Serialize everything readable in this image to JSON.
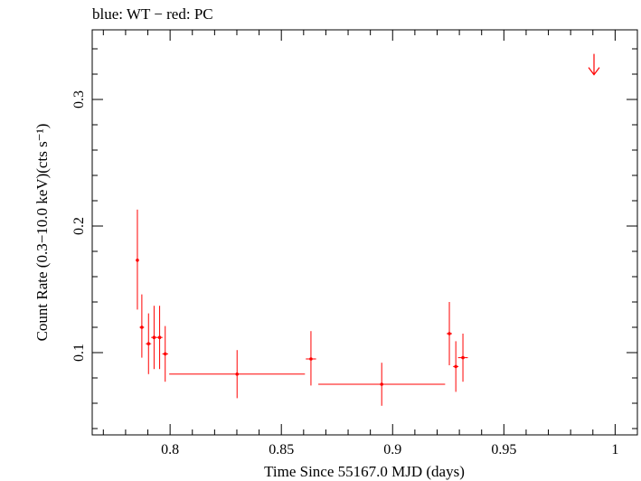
{
  "chart_data": {
    "type": "scatter",
    "title": "blue: WT − red: PC",
    "xlabel": "Time Since 55167.0 MJD (days)",
    "ylabel": "Count Rate (0.3−10.0 keV)(cts s⁻¹)",
    "xlim": [
      0.765,
      1.01
    ],
    "ylim": [
      0.035,
      0.355
    ],
    "x_ticks": [
      {
        "value": 0.8,
        "label": "0.8"
      },
      {
        "value": 0.85,
        "label": "0.85"
      },
      {
        "value": 0.9,
        "label": "0.9"
      },
      {
        "value": 0.95,
        "label": "0.95"
      },
      {
        "value": 1.0,
        "label": "1"
      }
    ],
    "y_ticks": [
      {
        "value": 0.1,
        "label": "0.1"
      },
      {
        "value": 0.2,
        "label": "0.2"
      },
      {
        "value": 0.3,
        "label": "0.3"
      }
    ],
    "series": [
      {
        "name": "PC",
        "color": "#ff0000",
        "points": [
          {
            "x": 0.7853,
            "y": 0.173,
            "xerr": 0.0,
            "ylo": 0.134,
            "yhi": 0.213
          },
          {
            "x": 0.7873,
            "y": 0.12,
            "xerr": 0.001,
            "ylo": 0.096,
            "yhi": 0.146
          },
          {
            "x": 0.7903,
            "y": 0.107,
            "xerr": 0.0012,
            "ylo": 0.083,
            "yhi": 0.131
          },
          {
            "x": 0.7928,
            "y": 0.112,
            "xerr": 0.0013,
            "ylo": 0.087,
            "yhi": 0.137
          },
          {
            "x": 0.7953,
            "y": 0.112,
            "xerr": 0.0013,
            "ylo": 0.087,
            "yhi": 0.137
          },
          {
            "x": 0.7978,
            "y": 0.099,
            "xerr": 0.0013,
            "ylo": 0.077,
            "yhi": 0.121
          },
          {
            "x": 0.8301,
            "y": 0.083,
            "xerr": 0.0305,
            "ylo": 0.064,
            "yhi": 0.102
          },
          {
            "x": 0.8633,
            "y": 0.095,
            "xerr": 0.0023,
            "ylo": 0.074,
            "yhi": 0.117
          },
          {
            "x": 0.8951,
            "y": 0.075,
            "xerr": 0.0285,
            "ylo": 0.058,
            "yhi": 0.092
          },
          {
            "x": 0.9255,
            "y": 0.115,
            "xerr": 0.0012,
            "ylo": 0.09,
            "yhi": 0.14
          },
          {
            "x": 0.9284,
            "y": 0.089,
            "xerr": 0.0012,
            "ylo": 0.069,
            "yhi": 0.109
          },
          {
            "x": 0.9316,
            "y": 0.096,
            "xerr": 0.0022,
            "ylo": 0.077,
            "yhi": 0.115
          }
        ]
      }
    ],
    "upper_limits": [
      {
        "x": 0.9905,
        "y": 0.336,
        "color": "#ff0000"
      }
    ]
  }
}
